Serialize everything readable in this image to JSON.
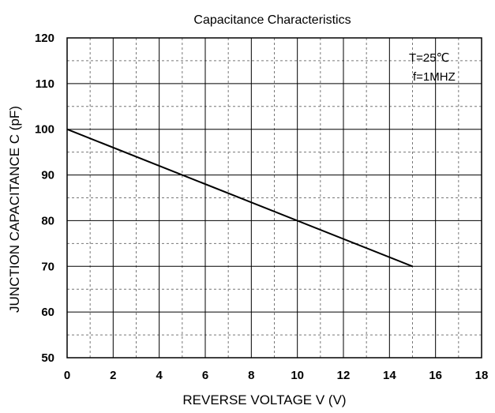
{
  "chart_data": {
    "type": "line",
    "title": "Capacitance Characteristics",
    "xlabel": "REVERSE VOLTAGE V (V)",
    "ylabel": "JUNCTION CAPACITANCE C (pF)",
    "xlim": [
      0,
      18
    ],
    "ylim": [
      50,
      120
    ],
    "x_ticks": [
      0,
      2,
      4,
      6,
      8,
      10,
      12,
      14,
      16,
      18
    ],
    "y_ticks": [
      50,
      60,
      70,
      80,
      90,
      100,
      110,
      120
    ],
    "grid": true,
    "minor_grid": true,
    "legend": "none",
    "annotations": [
      "T=25℃",
      "f=1MHZ"
    ],
    "series": [
      {
        "name": "Capacitance",
        "x": [
          0,
          15
        ],
        "y": [
          100,
          70
        ]
      }
    ]
  }
}
